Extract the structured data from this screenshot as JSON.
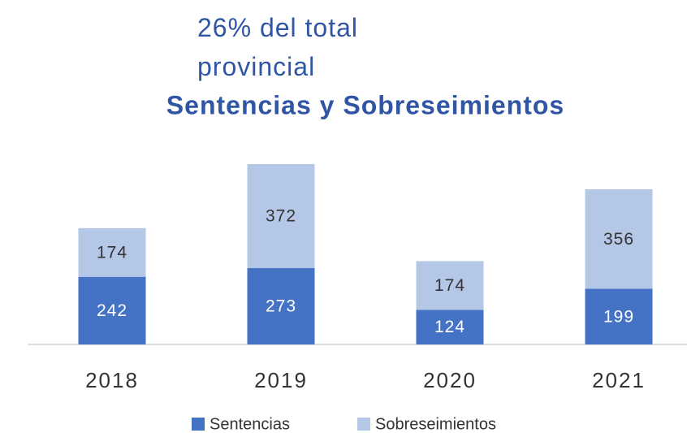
{
  "chart_data": {
    "type": "stacked_bar",
    "subtitle": "26% del total provincial",
    "title": "Sentencias y Sobreseimientos",
    "categories": [
      "2018",
      "2019",
      "2020",
      "2021"
    ],
    "series": [
      {
        "name": "Sentencias",
        "color": "#4472c4",
        "values": [
          242,
          273,
          124,
          199
        ]
      },
      {
        "name": "Sobreseimientos",
        "color": "#b4c7e7",
        "values": [
          174,
          372,
          174,
          356
        ]
      }
    ],
    "legend": "bottom"
  }
}
